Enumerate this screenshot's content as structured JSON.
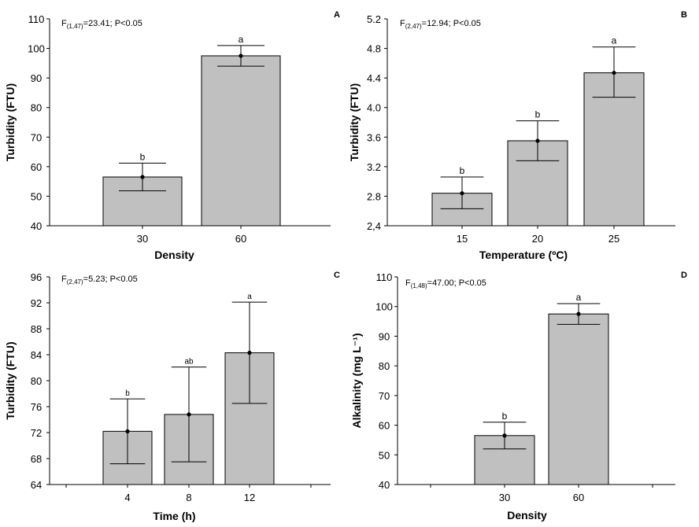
{
  "chart_data": [
    {
      "id": "A",
      "type": "bar",
      "panel_label": "A",
      "stat": {
        "main": "F",
        "sub": "(1,47)",
        "rest": "=23.41; P<0.05"
      },
      "xlabel": "Density",
      "ylabel": "Turbidity (FTU)",
      "ylim": [
        40,
        110
      ],
      "yticks": [
        "40",
        "50",
        "60",
        "70",
        "80",
        "90",
        "100",
        "110"
      ],
      "categories": [
        "30",
        "60"
      ],
      "values": [
        56.5,
        97.5
      ],
      "err_low": [
        51.8,
        94.0
      ],
      "err_high": [
        61.2,
        101.0
      ],
      "letters": [
        "b",
        "a"
      ]
    },
    {
      "id": "B",
      "type": "bar",
      "panel_label": "B",
      "stat": {
        "main": "F",
        "sub": "(2,47)",
        "rest": "=12.94; P<0.05"
      },
      "xlabel": "Temperature (ºC)",
      "ylabel": "Turbidity  (FTU)",
      "ylim": [
        2.4,
        5.2
      ],
      "yticks": [
        "2,4",
        "2.8",
        "3.2",
        "3.6",
        "4.0",
        "4.4",
        "4.8",
        "5.2"
      ],
      "categories": [
        "15",
        "20",
        "25"
      ],
      "values": [
        2.84,
        3.55,
        4.47
      ],
      "err_low": [
        2.63,
        3.28,
        4.14
      ],
      "err_high": [
        3.06,
        3.82,
        4.82
      ],
      "letters": [
        "b",
        "b",
        "a"
      ]
    },
    {
      "id": "C",
      "type": "bar",
      "panel_label": "C",
      "stat": {
        "main": "F",
        "sub": "(2,47)",
        "rest": "=5.23; P<0.05"
      },
      "xlabel": "Time (h)",
      "ylabel": "Turbidity (FTU)",
      "ylim": [
        64,
        96
      ],
      "yticks": [
        "64",
        "68",
        "72",
        "76",
        "80",
        "84",
        "88",
        "92",
        "96"
      ],
      "categories": [
        "4",
        "8",
        "12"
      ],
      "values": [
        72.2,
        74.8,
        84.3
      ],
      "err_low": [
        67.2,
        67.5,
        76.5
      ],
      "err_high": [
        77.2,
        82.1,
        92.1
      ],
      "letters": [
        "b",
        "ab",
        "a"
      ]
    },
    {
      "id": "D",
      "type": "bar",
      "panel_label": "D",
      "stat": {
        "main": "F",
        "sub": "(1,48)",
        "rest": "=47.00; P<0.05"
      },
      "xlabel": "Density",
      "ylabel": "Alkalinity (mg L⁻¹)",
      "ylim": [
        40,
        110
      ],
      "yticks": [
        "40",
        "50",
        "60",
        "70",
        "80",
        "90",
        "100",
        "110"
      ],
      "categories": [
        "30",
        "60"
      ],
      "values": [
        56.5,
        97.5
      ],
      "err_low": [
        52.0,
        94.0
      ],
      "err_high": [
        61.0,
        101.0
      ],
      "letters": [
        "b",
        "a"
      ]
    }
  ]
}
